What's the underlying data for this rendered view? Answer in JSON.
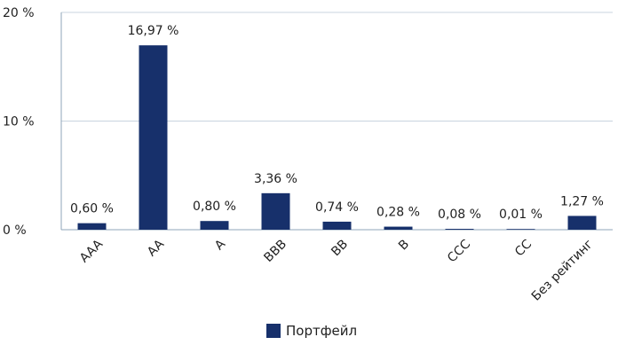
{
  "chart_data": {
    "type": "bar",
    "categories": [
      "AAA",
      "AA",
      "A",
      "BBB",
      "BB",
      "B",
      "CCC",
      "CC",
      "Без рейтинг"
    ],
    "series": [
      {
        "name": "Портфейл",
        "values": [
          0.6,
          16.97,
          0.8,
          3.36,
          0.74,
          0.28,
          0.08,
          0.01,
          1.27
        ],
        "labels": [
          "0,60 %",
          "16,97 %",
          "0,80 %",
          "3,36 %",
          "0,74 %",
          "0,28 %",
          "0,08 %",
          "0,01 %",
          "1,27 %"
        ]
      }
    ],
    "yticks": [
      0,
      10,
      20
    ],
    "ytick_labels": [
      "0 %",
      "10 %",
      "20 %"
    ],
    "ylim": [
      0,
      20
    ],
    "grid": true,
    "legend_position": "bottom",
    "colors": {
      "bar": "#17306b",
      "axis": "#8fa4b8",
      "grid": "#c9d4df"
    }
  },
  "legend": {
    "label": "Портфейл"
  }
}
